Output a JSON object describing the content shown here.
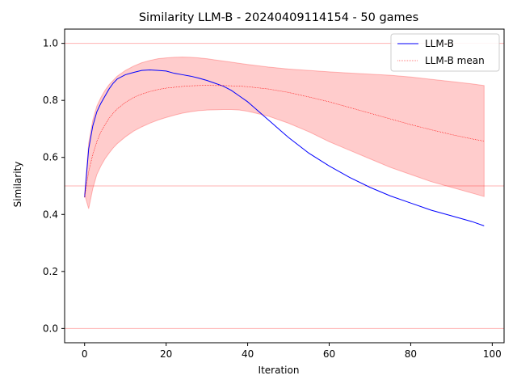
{
  "chart_data": {
    "type": "line",
    "title": "Similarity LLM-B - 20240409114154 - 50 games",
    "xlabel": "Iteration",
    "ylabel": "Similarity",
    "xlim": [
      -4.9,
      102.9
    ],
    "ylim": [
      -0.05,
      1.05
    ],
    "x_ticks": [
      0,
      20,
      40,
      60,
      80,
      100
    ],
    "x_tick_labels": [
      "0",
      "20",
      "40",
      "60",
      "80",
      "100"
    ],
    "y_ticks": [
      0.0,
      0.2,
      0.4,
      0.6,
      0.8,
      1.0
    ],
    "y_tick_labels": [
      "0.0",
      "0.2",
      "0.4",
      "0.6",
      "0.8",
      "1.0"
    ],
    "legend_position": "top-right",
    "reference_lines": [
      {
        "y": 1.0,
        "color": "#ffb3b3"
      },
      {
        "y": 0.5,
        "color": "#ffb3b3"
      },
      {
        "y": 0.0,
        "color": "#ffb3b3"
      }
    ],
    "series": [
      {
        "name": "LLM-B",
        "color": "#0000ff",
        "x": [
          0,
          1,
          2,
          3,
          4,
          5,
          6,
          7,
          8,
          10,
          12,
          14,
          16,
          18,
          20,
          22,
          24,
          26,
          28,
          30,
          32,
          34,
          36,
          38,
          40,
          42,
          44,
          46,
          48,
          50,
          55,
          60,
          65,
          70,
          75,
          80,
          85,
          90,
          95,
          98
        ],
        "values": [
          0.46,
          0.63,
          0.71,
          0.76,
          0.79,
          0.815,
          0.84,
          0.86,
          0.875,
          0.89,
          0.898,
          0.905,
          0.907,
          0.905,
          0.903,
          0.895,
          0.89,
          0.885,
          0.878,
          0.87,
          0.86,
          0.85,
          0.835,
          0.815,
          0.795,
          0.77,
          0.745,
          0.72,
          0.695,
          0.67,
          0.615,
          0.57,
          0.53,
          0.495,
          0.465,
          0.44,
          0.415,
          0.395,
          0.375,
          0.36
        ]
      },
      {
        "name": "LLM-B mean",
        "color": "#ff0000",
        "x": [
          0,
          1,
          2,
          3,
          4,
          5,
          6,
          7,
          8,
          10,
          12,
          14,
          16,
          18,
          20,
          22,
          24,
          26,
          28,
          30,
          32,
          34,
          36,
          38,
          40,
          45,
          50,
          55,
          60,
          65,
          70,
          75,
          80,
          85,
          90,
          95,
          98
        ],
        "values": [
          0.46,
          0.55,
          0.61,
          0.655,
          0.69,
          0.715,
          0.737,
          0.755,
          0.77,
          0.793,
          0.81,
          0.822,
          0.831,
          0.838,
          0.843,
          0.846,
          0.849,
          0.851,
          0.852,
          0.853,
          0.852,
          0.852,
          0.851,
          0.85,
          0.848,
          0.84,
          0.828,
          0.812,
          0.795,
          0.775,
          0.755,
          0.735,
          0.715,
          0.697,
          0.68,
          0.665,
          0.657
        ]
      }
    ],
    "band": {
      "color": "#ff0000",
      "opacity": 0.2,
      "x": [
        0,
        1,
        2,
        3,
        4,
        5,
        6,
        7,
        8,
        10,
        12,
        14,
        16,
        18,
        20,
        22,
        24,
        26,
        28,
        30,
        32,
        34,
        36,
        38,
        40,
        45,
        50,
        55,
        60,
        65,
        70,
        75,
        80,
        85,
        90,
        95,
        98
      ],
      "lower": [
        0.47,
        0.42,
        0.49,
        0.54,
        0.57,
        0.595,
        0.615,
        0.633,
        0.648,
        0.672,
        0.692,
        0.707,
        0.72,
        0.731,
        0.74,
        0.748,
        0.755,
        0.76,
        0.764,
        0.766,
        0.767,
        0.768,
        0.768,
        0.766,
        0.762,
        0.745,
        0.72,
        0.69,
        0.655,
        0.625,
        0.595,
        0.565,
        0.54,
        0.515,
        0.495,
        0.475,
        0.463
      ],
      "upper": [
        0.47,
        0.65,
        0.73,
        0.78,
        0.81,
        0.835,
        0.855,
        0.87,
        0.885,
        0.905,
        0.92,
        0.932,
        0.94,
        0.946,
        0.949,
        0.951,
        0.952,
        0.951,
        0.949,
        0.946,
        0.942,
        0.938,
        0.934,
        0.93,
        0.926,
        0.917,
        0.91,
        0.905,
        0.9,
        0.896,
        0.892,
        0.888,
        0.882,
        0.874,
        0.866,
        0.858,
        0.852
      ]
    }
  }
}
